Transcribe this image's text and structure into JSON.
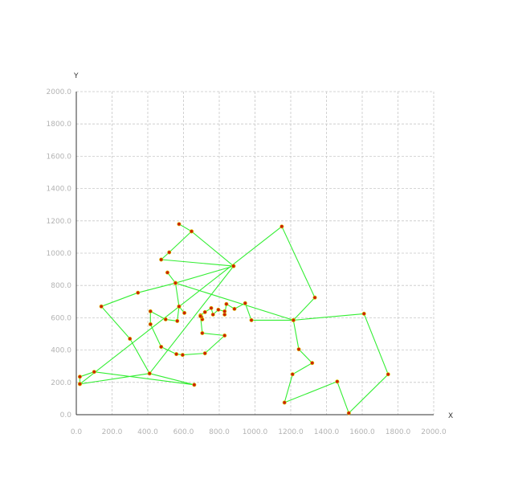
{
  "chart_data": {
    "type": "line",
    "xlabel": "X",
    "ylabel": "Y",
    "xlim": [
      0,
      2000
    ],
    "ylim": [
      0,
      2000
    ],
    "x_ticks": [
      "0.0",
      "200.0",
      "400.0",
      "600.0",
      "800.0",
      "1000.0",
      "1200.0",
      "1400.0",
      "1600.0",
      "1800.0",
      "2000.0"
    ],
    "y_ticks": [
      "0.0",
      "200.0",
      "400.0",
      "600.0",
      "800.0",
      "1000.0",
      "1200.0",
      "1400.0",
      "1600.0",
      "1800.0",
      "2000.0"
    ],
    "grid": true,
    "colors": {
      "line": "#33ee33",
      "marker": "#cc2200",
      "marker_edge": "#ddcc00",
      "grid": "#c8c8c8",
      "axis": "#333333"
    },
    "series": [
      {
        "points": [
          [
            20,
            190
          ],
          [
            20,
            235
          ],
          [
            100,
            265
          ],
          [
            660,
            185
          ],
          [
            410,
            255
          ],
          [
            300,
            470
          ],
          [
            140,
            670
          ],
          [
            345,
            755
          ],
          [
            555,
            815
          ],
          [
            880,
            920
          ],
          [
            475,
            960
          ],
          [
            520,
            1005
          ],
          [
            645,
            1135
          ],
          [
            575,
            1180
          ],
          [
            645,
            1135
          ],
          [
            880,
            920
          ],
          [
            410,
            255
          ],
          [
            20,
            190
          ],
          [
            1150,
            1165
          ],
          [
            1335,
            725
          ],
          [
            1215,
            585
          ],
          [
            980,
            585
          ],
          [
            945,
            690
          ],
          [
            885,
            655
          ],
          [
            840,
            685
          ],
          [
            830,
            620
          ],
          [
            830,
            640
          ],
          [
            795,
            650
          ],
          [
            765,
            620
          ],
          [
            755,
            660
          ],
          [
            720,
            635
          ],
          [
            695,
            615
          ],
          [
            705,
            590
          ],
          [
            700,
            605
          ],
          [
            695,
            610
          ],
          [
            705,
            505
          ],
          [
            830,
            490
          ],
          [
            720,
            380
          ],
          [
            595,
            370
          ],
          [
            560,
            375
          ],
          [
            475,
            420
          ],
          [
            415,
            560
          ],
          [
            415,
            640
          ],
          [
            500,
            590
          ],
          [
            565,
            580
          ],
          [
            575,
            670
          ],
          [
            605,
            630
          ],
          [
            575,
            670
          ],
          [
            555,
            815
          ],
          [
            510,
            880
          ],
          [
            555,
            815
          ],
          [
            1215,
            585
          ],
          [
            1610,
            625
          ],
          [
            1745,
            250
          ],
          [
            1525,
            10
          ],
          [
            1460,
            205
          ],
          [
            1165,
            75
          ],
          [
            1210,
            250
          ],
          [
            1320,
            320
          ],
          [
            1245,
            405
          ],
          [
            1215,
            585
          ]
        ]
      }
    ]
  }
}
